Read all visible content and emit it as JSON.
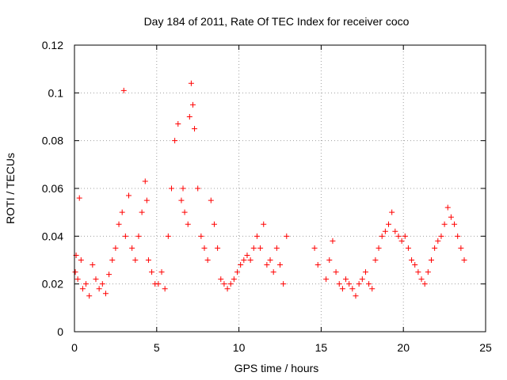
{
  "chart_data": {
    "type": "scatter",
    "title": "Day 184 of 2011, Rate Of TEC Index for receiver coco",
    "xlabel": "GPS time / hours",
    "ylabel": "ROTI / TECUs",
    "xlim": [
      0,
      25
    ],
    "ylim": [
      0,
      0.12
    ],
    "x_ticks": [
      0,
      5,
      10,
      15,
      20,
      25
    ],
    "x_tick_labels": [
      "0",
      "5",
      "10",
      "15",
      "20",
      "25"
    ],
    "y_ticks": [
      0,
      0.02,
      0.04,
      0.06,
      0.08,
      0.1,
      0.12
    ],
    "y_tick_labels": [
      "0",
      "0.02",
      "0.04",
      "0.06",
      "0.08",
      "0.1",
      "0.12"
    ],
    "grid": true,
    "marker": "plus",
    "color": "#ff0000",
    "series": [
      {
        "x": [
          0.05,
          0.1,
          0.2,
          0.3,
          0.4,
          0.5,
          0.7,
          0.9,
          1.1,
          1.3,
          1.5,
          1.7,
          1.9,
          2.1,
          2.3,
          2.5,
          2.7,
          2.9,
          3.0,
          3.1,
          3.3,
          3.5,
          3.7,
          3.9,
          4.1,
          4.3,
          4.4,
          4.5,
          4.7,
          4.9,
          5.1,
          5.3,
          5.5,
          5.7,
          5.9,
          6.1,
          6.3,
          6.5,
          6.6,
          6.7,
          6.9,
          7.0,
          7.1,
          7.2,
          7.3,
          7.5,
          7.7,
          7.9,
          8.1,
          8.3,
          8.5,
          8.7,
          8.9,
          9.1,
          9.3,
          9.5,
          9.7,
          9.9,
          10.1,
          10.3,
          10.5,
          10.7,
          10.9,
          11.1,
          11.3,
          11.5,
          11.7,
          11.9,
          12.1,
          12.3,
          12.5,
          12.7,
          12.9,
          14.6,
          14.8,
          15.3,
          15.5,
          15.7,
          15.9,
          16.1,
          16.3,
          16.5,
          16.7,
          16.9,
          17.1,
          17.3,
          17.5,
          17.7,
          17.9,
          18.1,
          18.3,
          18.5,
          18.7,
          18.9,
          19.1,
          19.3,
          19.5,
          19.7,
          19.9,
          20.1,
          20.3,
          20.5,
          20.7,
          20.9,
          21.1,
          21.3,
          21.5,
          21.7,
          21.9,
          22.1,
          22.3,
          22.5,
          22.7,
          22.9,
          23.1,
          23.3,
          23.5,
          23.7
        ],
        "y": [
          0.025,
          0.032,
          0.022,
          0.056,
          0.03,
          0.018,
          0.02,
          0.015,
          0.028,
          0.022,
          0.018,
          0.02,
          0.016,
          0.024,
          0.03,
          0.035,
          0.045,
          0.05,
          0.101,
          0.04,
          0.057,
          0.035,
          0.03,
          0.04,
          0.05,
          0.063,
          0.055,
          0.03,
          0.025,
          0.02,
          0.02,
          0.025,
          0.018,
          0.04,
          0.06,
          0.08,
          0.087,
          0.055,
          0.06,
          0.05,
          0.045,
          0.09,
          0.104,
          0.095,
          0.085,
          0.06,
          0.04,
          0.035,
          0.03,
          0.055,
          0.045,
          0.035,
          0.022,
          0.02,
          0.018,
          0.02,
          0.022,
          0.025,
          0.028,
          0.03,
          0.032,
          0.03,
          0.035,
          0.04,
          0.035,
          0.045,
          0.028,
          0.03,
          0.025,
          0.035,
          0.028,
          0.02,
          0.04,
          0.035,
          0.028,
          0.022,
          0.03,
          0.038,
          0.025,
          0.02,
          0.018,
          0.022,
          0.02,
          0.018,
          0.015,
          0.02,
          0.022,
          0.025,
          0.02,
          0.018,
          0.03,
          0.035,
          0.04,
          0.042,
          0.045,
          0.05,
          0.042,
          0.04,
          0.038,
          0.04,
          0.035,
          0.03,
          0.028,
          0.025,
          0.022,
          0.02,
          0.025,
          0.03,
          0.035,
          0.038,
          0.04,
          0.045,
          0.052,
          0.048,
          0.045,
          0.04,
          0.035,
          0.03
        ]
      }
    ]
  }
}
